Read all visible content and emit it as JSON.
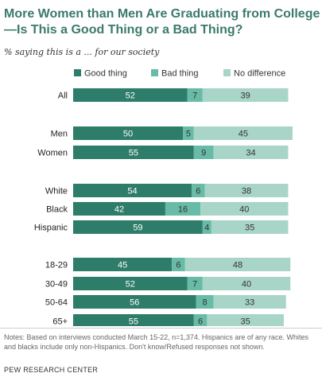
{
  "title": "More Women than Men Are Graduating from College—Is This a Good Thing or a Bad Thing?",
  "subtitle": "% saying this is a ... for our society",
  "notes": "Notes: Based on interviews conducted March 15-22, n=1,374. Hispanics are of any race. Whites and blacks include only non-Hispanics. Don't know/Refused responses not shown.",
  "source": "PEW RESEARCH CENTER",
  "chart_data": {
    "type": "bar",
    "orientation": "horizontal",
    "stacked": true,
    "categories": [
      "All",
      "Men",
      "Women",
      "White",
      "Black",
      "Hispanic",
      "18-29",
      "30-49",
      "50-64",
      "65+"
    ],
    "series": [
      {
        "name": "Good thing",
        "color": "#2e7d6a",
        "values": [
          52,
          50,
          55,
          54,
          42,
          59,
          45,
          52,
          56,
          55
        ]
      },
      {
        "name": "Bad thing",
        "color": "#68bba6",
        "values": [
          7,
          5,
          9,
          6,
          16,
          4,
          6,
          7,
          8,
          6
        ]
      },
      {
        "name": "No difference",
        "color": "#a8d5c8",
        "values": [
          39,
          45,
          34,
          38,
          40,
          35,
          48,
          40,
          33,
          35
        ]
      }
    ],
    "legend_position": "top",
    "grid": false
  }
}
